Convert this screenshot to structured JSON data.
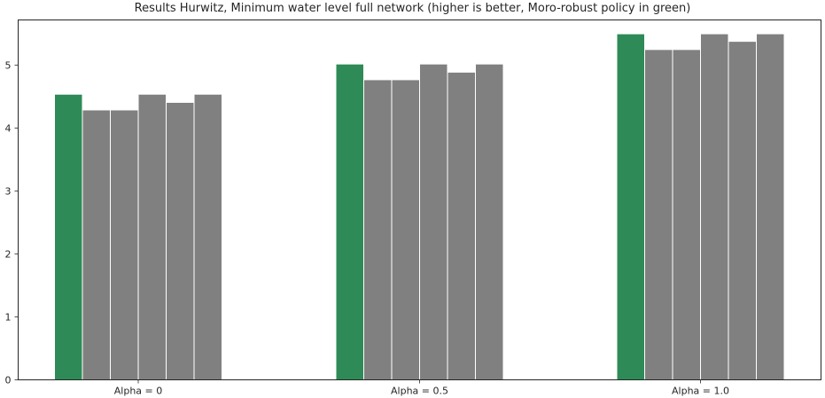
{
  "chart_data": {
    "type": "bar",
    "title": "Results Hurwitz, Minimum water level full network (higher is better, Moro-robust policy in green)",
    "categories": [
      "Alpha = 0",
      "Alpha = 0.5",
      "Alpha = 1.0"
    ],
    "series": [
      {
        "values": [
          4.54,
          5.02,
          5.5
        ],
        "color": "#2e8b57"
      },
      {
        "values": [
          4.29,
          4.77,
          5.25
        ],
        "color": "#808080"
      },
      {
        "values": [
          4.29,
          4.77,
          5.25
        ],
        "color": "#808080"
      },
      {
        "values": [
          4.54,
          5.02,
          5.5
        ],
        "color": "#808080"
      },
      {
        "values": [
          4.41,
          4.89,
          5.38
        ],
        "color": "#808080"
      },
      {
        "values": [
          4.54,
          5.02,
          5.5
        ],
        "color": "#808080"
      }
    ],
    "yticks": [
      0,
      1,
      2,
      3,
      4,
      5
    ],
    "ylim": [
      0,
      5.72
    ],
    "xlabel": "",
    "ylabel": "",
    "grid": false,
    "legend": "none",
    "frame_color": "#262626"
  }
}
